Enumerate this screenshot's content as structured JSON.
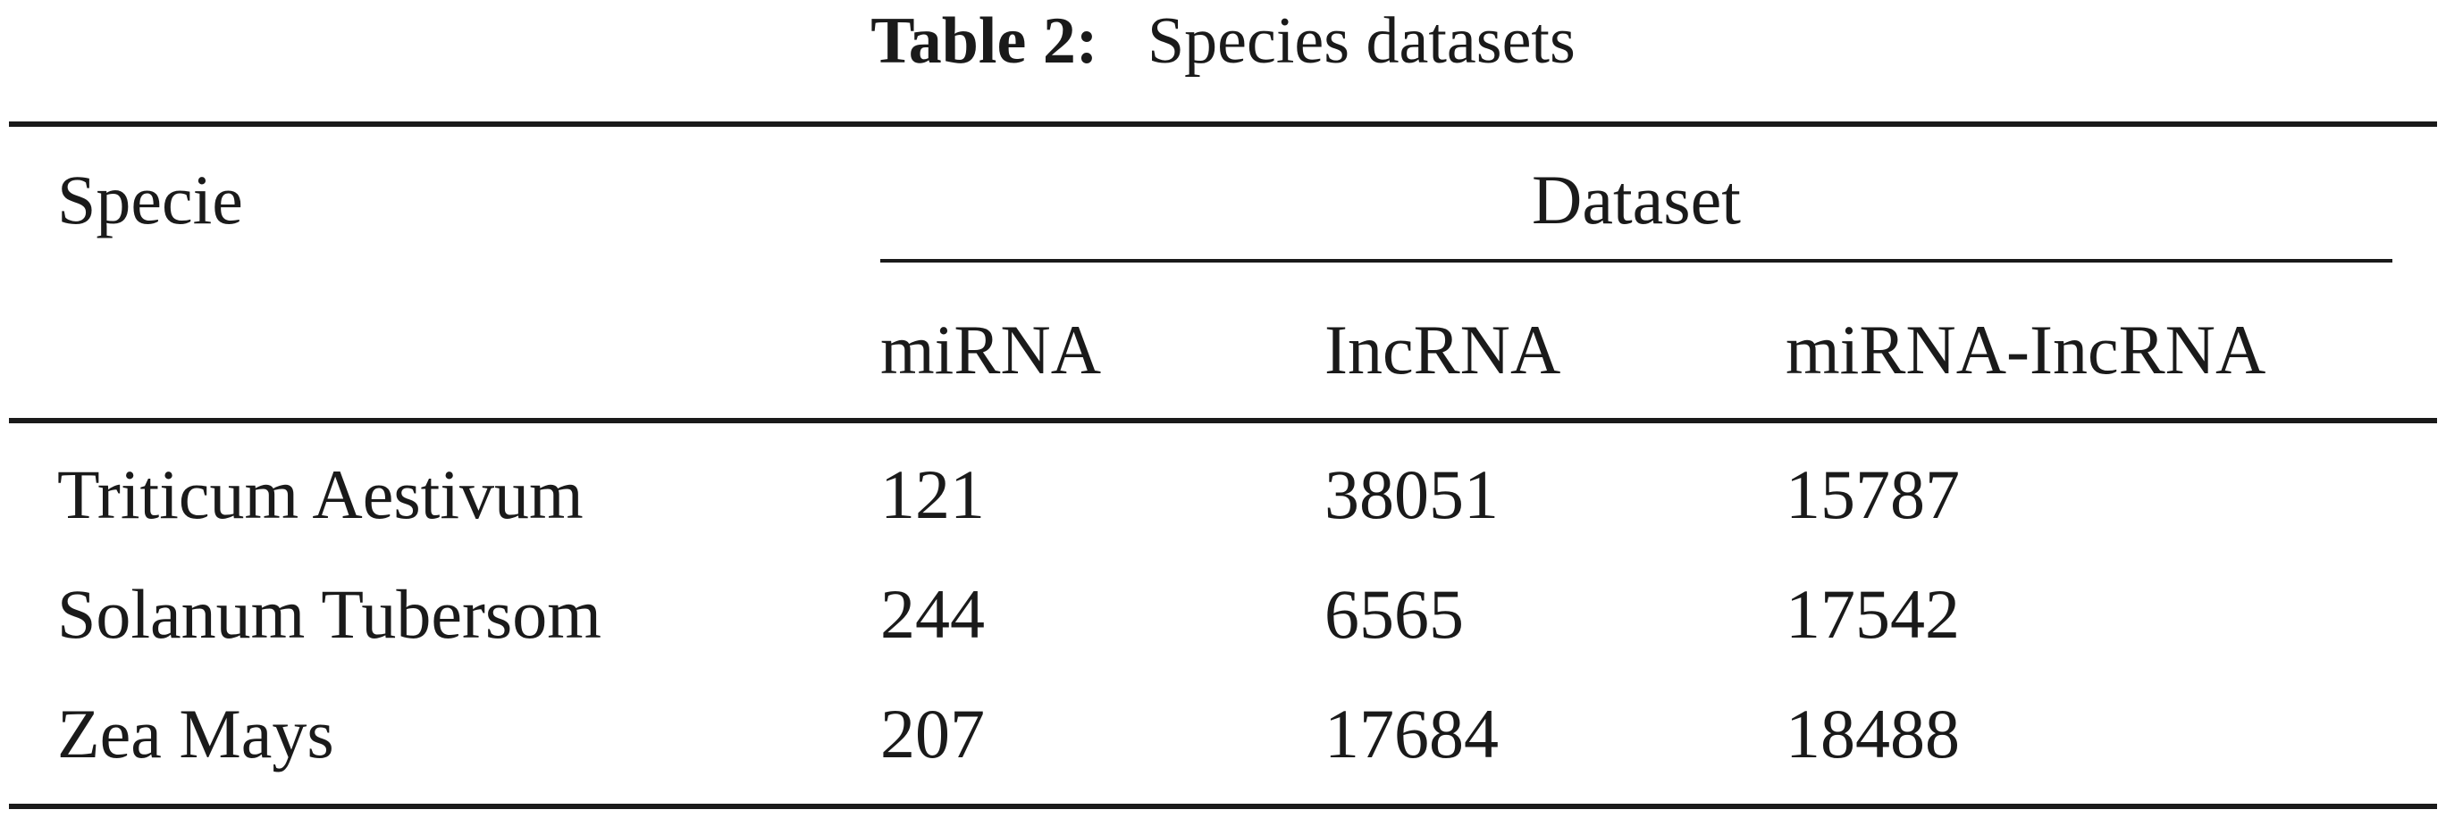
{
  "caption": {
    "label": "Table 2:",
    "text": "Species datasets"
  },
  "table": {
    "row_header": "Specie",
    "group_header": "Dataset",
    "columns": [
      "miRNA",
      "IncRNA",
      "miRNA-IncRNA"
    ],
    "rows": [
      {
        "specie": "Triticum Aestivum",
        "values": [
          "121",
          "38051",
          "15787"
        ]
      },
      {
        "specie": "Solanum Tubersom",
        "values": [
          "244",
          "6565",
          "17542"
        ]
      },
      {
        "specie": "Zea Mays",
        "values": [
          "207",
          "17684",
          "18488"
        ]
      }
    ]
  }
}
